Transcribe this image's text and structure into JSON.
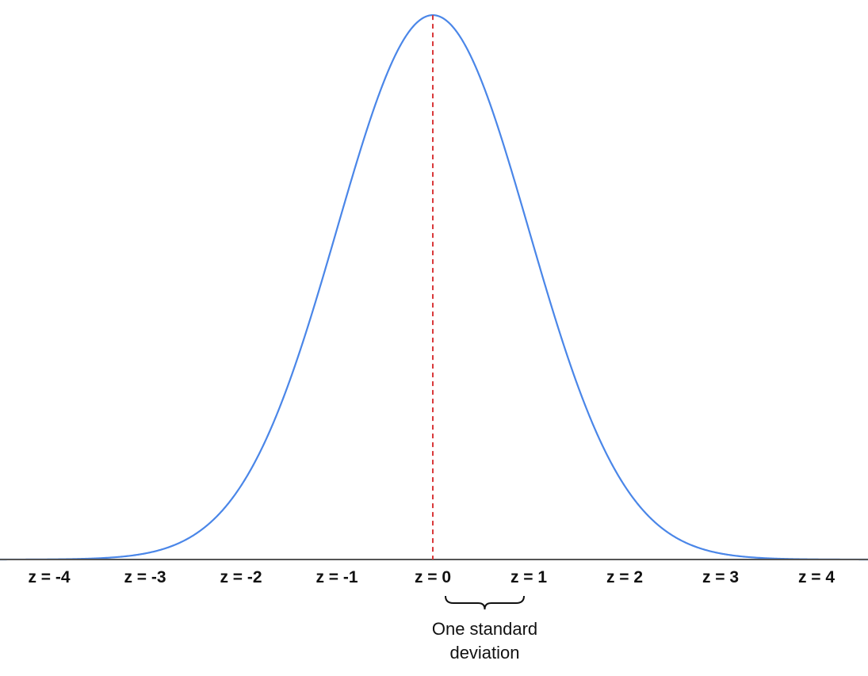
{
  "chart_data": {
    "type": "line",
    "title": "",
    "xlabel": "",
    "ylabel": "",
    "xlim": [
      -4.5,
      4.5
    ],
    "ylim": [
      0,
      0.399
    ],
    "x_tick_values": [
      -4,
      -3,
      -2,
      -1,
      0,
      1,
      2,
      3,
      4
    ],
    "x_tick_labels": [
      "z = -4",
      "z = -3",
      "z = -2",
      "z = -1",
      "z = 0",
      "z = 1",
      "z = 2",
      "z = 3",
      "z = 4"
    ],
    "grid": false,
    "series": [
      {
        "curve": "standard normal density",
        "mean": 0,
        "sd": 1,
        "color": "#4a86e8"
      }
    ],
    "reference_line": {
      "x": 0,
      "style": "dashed",
      "color": "#d9383a"
    },
    "annotation": {
      "from_x": 0,
      "to_x": 1,
      "lines": [
        "One standard",
        "deviation"
      ]
    },
    "axis_color": "#555555"
  }
}
